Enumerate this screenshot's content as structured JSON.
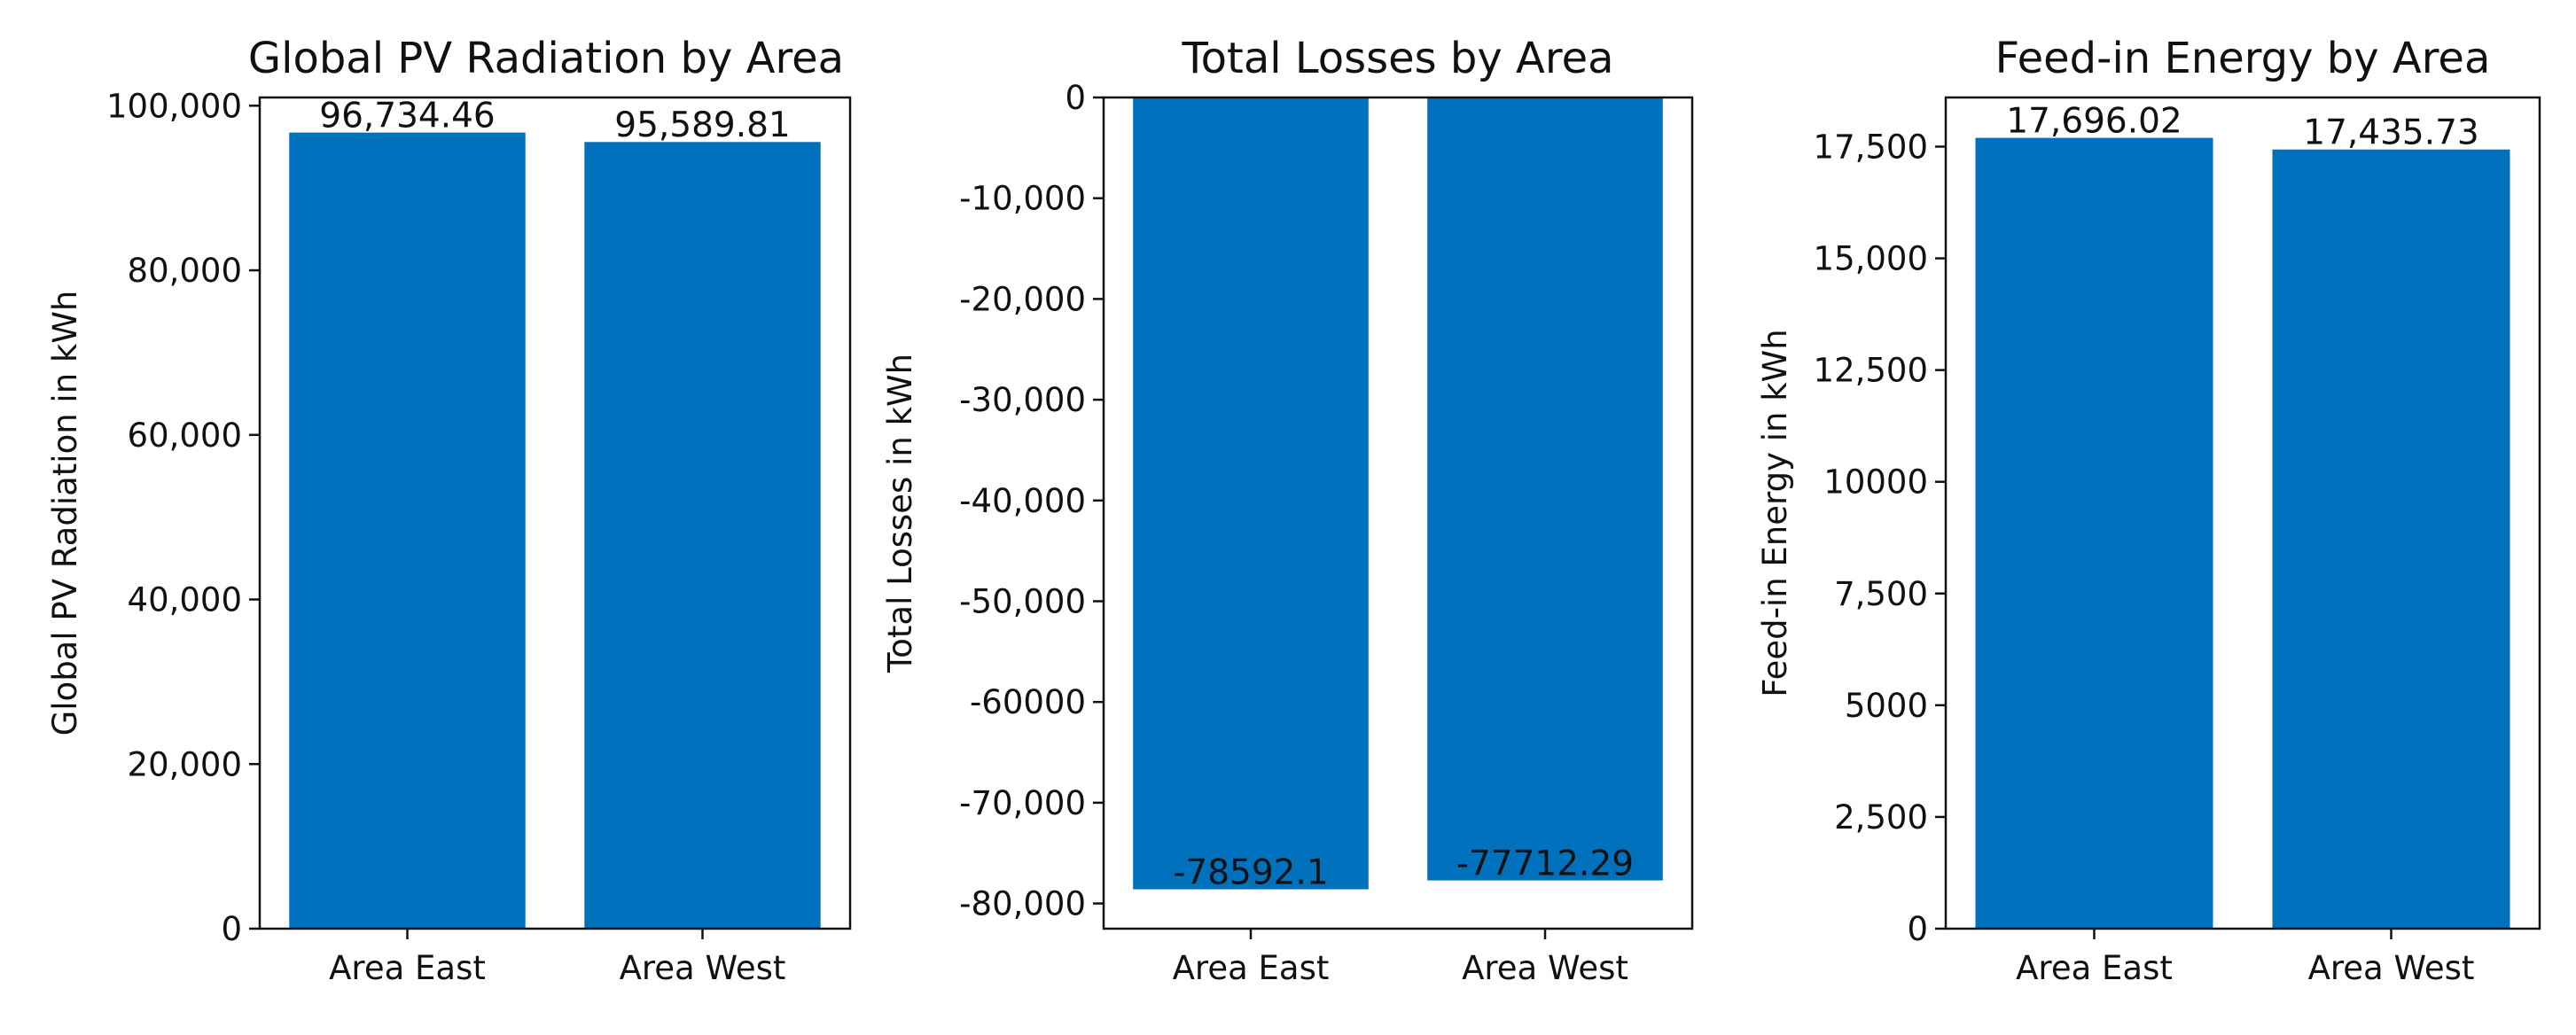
{
  "colors": {
    "bar": "#0072BD",
    "axis": "#111111",
    "background": "#ffffff"
  },
  "chart_data": [
    {
      "type": "bar",
      "title": "Global PV Radiation by Area",
      "xlabel": "",
      "ylabel": "Global PV Radiation in kWh",
      "categories": [
        "Area East",
        "Area West"
      ],
      "values": [
        96734.46,
        95589.81
      ],
      "data_labels": [
        "96,734.46",
        "95,589.81"
      ],
      "ylim": [
        0,
        101000
      ],
      "yticks": [
        0,
        20000,
        40000,
        60000,
        80000,
        100000
      ],
      "ytick_labels": [
        "0",
        "20,000",
        "40,000",
        "60,000",
        "80,000",
        "100,000"
      ],
      "grid": false,
      "legend": "none"
    },
    {
      "type": "bar",
      "title": "Total Losses by Area",
      "xlabel": "",
      "ylabel": "Total Losses in kWh",
      "categories": [
        "Area East",
        "Area West"
      ],
      "values": [
        -78592.1,
        -77712.29
      ],
      "data_labels": [
        "-78592.1",
        "-77712.29"
      ],
      "ylim": [
        -82500,
        0
      ],
      "yticks": [
        0,
        -10000,
        -20000,
        -30000,
        -40000,
        -50000,
        -60000,
        -70000,
        -80000
      ],
      "ytick_labels": [
        "0",
        "-10,000",
        "-20,000",
        "-30,000",
        "-40,000",
        "-50,000",
        "-60000",
        "-70,000",
        "-80,000"
      ],
      "grid": false,
      "legend": "none"
    },
    {
      "type": "bar",
      "title": "Feed-in Energy by Area",
      "xlabel": "",
      "ylabel": "Feed-in Energy in kWh",
      "categories": [
        "Area East",
        "Area West"
      ],
      "values": [
        17696.02,
        17435.73
      ],
      "data_labels": [
        "17,696.02",
        "17,435.73"
      ],
      "ylim": [
        0,
        18600
      ],
      "yticks": [
        0,
        2500,
        5000,
        7500,
        10000,
        12500,
        15000,
        17500
      ],
      "ytick_labels": [
        "0",
        "2,500",
        "5000",
        "7,500",
        "10000",
        "12,500",
        "15,000",
        "17,500"
      ],
      "grid": false,
      "legend": "none"
    }
  ]
}
